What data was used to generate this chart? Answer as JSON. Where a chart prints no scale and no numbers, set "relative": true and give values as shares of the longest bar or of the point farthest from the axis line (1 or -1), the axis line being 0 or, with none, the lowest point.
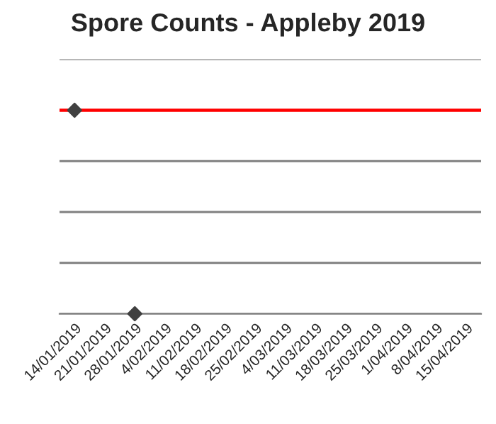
{
  "chart_data": {
    "type": "scatter",
    "title": "Spore Counts - Appleby 2019",
    "relative": true,
    "categories": [
      "14/01/2019",
      "21/01/2019",
      "28/01/2019",
      "4/02/2019",
      "11/02/2019",
      "18/02/2019",
      "25/02/2019",
      "4/03/2019",
      "11/03/2019",
      "18/03/2019",
      "25/03/2019",
      "1/04/2019",
      "8/04/2019",
      "15/04/2019"
    ],
    "series": [
      {
        "color": "#404040",
        "values": [
          1,
          null,
          0,
          null,
          null,
          null,
          null,
          null,
          null,
          null,
          null,
          null,
          null,
          null
        ]
      }
    ],
    "ref_lines": [
      {
        "axis": "y",
        "value": 1,
        "label": null,
        "color": "#ff0000",
        "line_style": "solid"
      }
    ],
    "marker": "diamond",
    "grid": "y",
    "legend": false
  }
}
